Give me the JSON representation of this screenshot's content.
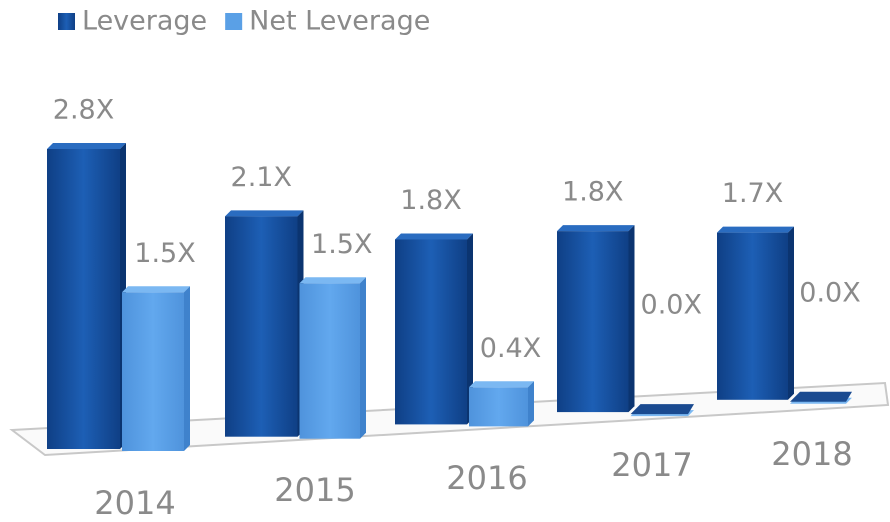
{
  "chart_data": {
    "type": "bar3d",
    "categories": [
      "2014",
      "2015",
      "2016",
      "2017",
      "2018"
    ],
    "series": [
      {
        "name": "Leverage",
        "color": "#1a56a8",
        "values": [
          2.8,
          2.1,
          1.8,
          1.8,
          1.7
        ],
        "value_labels": [
          "2.8X",
          "2.1X",
          "1.8X",
          "1.8X",
          "1.7X"
        ]
      },
      {
        "name": "Net Leverage",
        "color": "#5aa0e6",
        "values": [
          1.5,
          1.5,
          0.4,
          0.0,
          0.0
        ],
        "value_labels": [
          "1.5X",
          "1.5X",
          "0.4X",
          "0.0X",
          "0.0X"
        ]
      }
    ]
  }
}
